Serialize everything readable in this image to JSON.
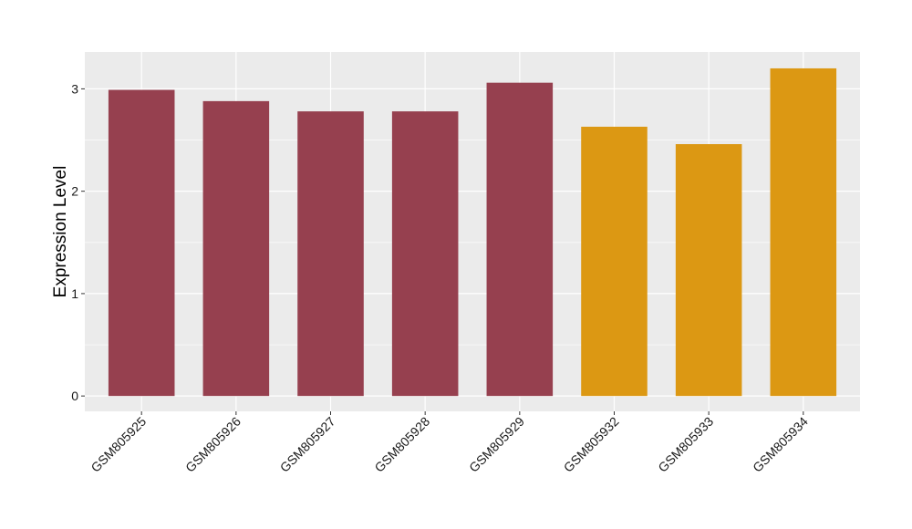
{
  "chart_data": {
    "type": "bar",
    "title": "",
    "xlabel": "",
    "ylabel": "Expression Level",
    "categories": [
      "GSM805925",
      "GSM805926",
      "GSM805927",
      "GSM805928",
      "GSM805929",
      "GSM805932",
      "GSM805933",
      "GSM805934"
    ],
    "values": [
      2.99,
      2.88,
      2.78,
      2.78,
      3.06,
      2.63,
      2.46,
      3.2
    ],
    "groups": [
      "group-1",
      "group-1",
      "group-1",
      "group-1",
      "group-1",
      "group-2",
      "group-2",
      "group-2"
    ],
    "group_colors": {
      "group-1": "#96404f",
      "group-2": "#dc9813"
    },
    "ylim": [
      -0.15,
      3.36
    ],
    "yticks": [
      0,
      1,
      2,
      3
    ],
    "grid": true,
    "legend": "none",
    "panel_background": "#ebebeb",
    "grid_color": "#ffffff"
  }
}
